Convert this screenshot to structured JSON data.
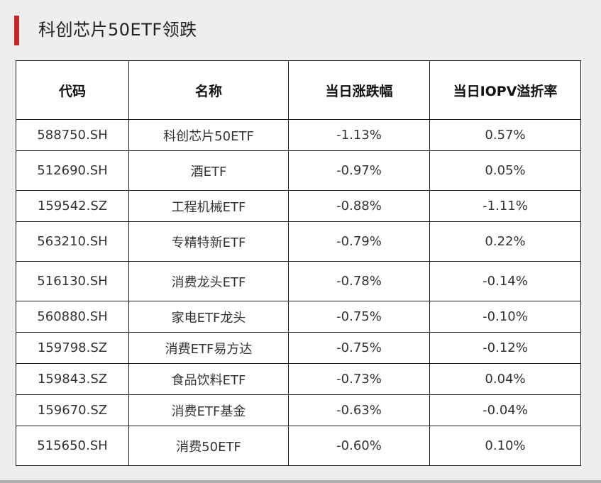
{
  "page": {
    "title": "科创芯片50ETF领跌",
    "accent_color": "#c0282b",
    "background_color": "#efeeec"
  },
  "table": {
    "headers": [
      "代码",
      "名称",
      "当日涨跌幅",
      "当日IOPV溢折率"
    ],
    "rows": [
      {
        "code": "588750.SH",
        "name": "科创芯片50ETF",
        "change": "-1.13%",
        "premium": "0.57%"
      },
      {
        "code": "512690.SH",
        "name": "酒ETF",
        "change": "-0.97%",
        "premium": "0.05%"
      },
      {
        "code": "159542.SZ",
        "name": "工程机械ETF",
        "change": "-0.88%",
        "premium": "-1.11%"
      },
      {
        "code": "563210.SH",
        "name": "专精特新ETF",
        "change": "-0.79%",
        "premium": "0.22%"
      },
      {
        "code": "516130.SH",
        "name": "消费龙头ETF",
        "change": "-0.78%",
        "premium": "-0.14%"
      },
      {
        "code": "560880.SH",
        "name": "家电ETF龙头",
        "change": "-0.75%",
        "premium": "-0.10%"
      },
      {
        "code": "159798.SZ",
        "name": "消费ETF易方达",
        "change": "-0.75%",
        "premium": "-0.12%"
      },
      {
        "code": "159843.SZ",
        "name": "食品饮料ETF",
        "change": "-0.73%",
        "premium": "0.04%"
      },
      {
        "code": "159670.SZ",
        "name": "消费ETF基金",
        "change": "-0.63%",
        "premium": "-0.04%"
      },
      {
        "code": "515650.SH",
        "name": "消费50ETF",
        "change": "-0.60%",
        "premium": "0.10%"
      }
    ]
  }
}
